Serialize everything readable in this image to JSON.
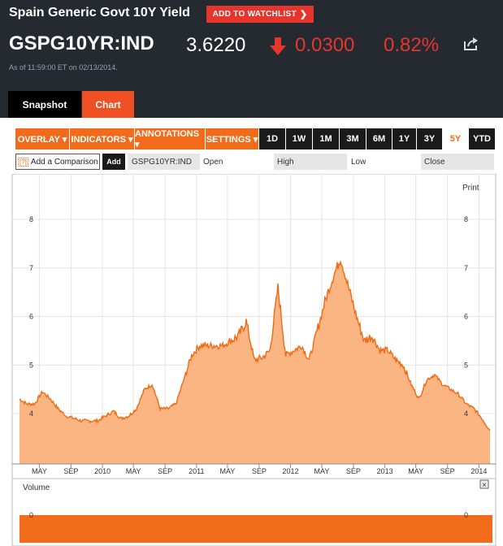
{
  "header": {
    "title": "Spain Generic Govt 10Y Yield",
    "watchlist_label": "ADD TO WATCHLIST",
    "ticker": "GSPG10YR:IND",
    "price": "3.6220",
    "change": "0.0300",
    "change_pct": "0.82%",
    "as_of": "As of 11:59:00 ET on 02/13/2014.",
    "tabs": [
      "Snapshot",
      "Chart"
    ]
  },
  "colors": {
    "accent": "#f26b1a",
    "header_bg": "#252a31",
    "down": "#e5352c",
    "area_fill": "#fbb582"
  },
  "toolbar": {
    "menus": [
      "OVERLAY ▾",
      "INDICATORS ▾",
      "ANNOTATIONS ▾",
      "SETTINGS ▾"
    ],
    "ranges": [
      "1D",
      "1W",
      "1M",
      "3M",
      "6M",
      "1Y",
      "3Y",
      "5Y",
      "YTD"
    ],
    "active_range": "5Y"
  },
  "comparison": {
    "placeholder": "Add a Comparison",
    "help_icon": "[?]",
    "add_label": "Add",
    "symbol": "GSPG10YR:IND",
    "fields": [
      "Open",
      "High",
      "Low",
      "Close"
    ]
  },
  "chart": {
    "print_label": "Print",
    "volume_label": "Volume",
    "volume_close_icon": "×"
  },
  "chart_data": {
    "type": "area",
    "yticks": [
      "4",
      "5",
      "6",
      "7",
      "8"
    ],
    "ylim": [
      3.3,
      8.4
    ],
    "xticks": [
      "MAY",
      "SEP",
      "2010",
      "MAY",
      "SEP",
      "2011",
      "MAY",
      "SEP",
      "2012",
      "MAY",
      "SEP",
      "2013",
      "MAY",
      "SEP",
      "2014"
    ],
    "x": [
      "2009-02",
      "2009-03",
      "2009-04",
      "2009-05",
      "2009-06",
      "2009-07",
      "2009-08",
      "2009-09",
      "2009-10",
      "2009-11",
      "2009-12",
      "2010-01",
      "2010-02",
      "2010-03",
      "2010-04",
      "2010-05",
      "2010-06",
      "2010-07",
      "2010-08",
      "2010-09",
      "2010-10",
      "2010-11",
      "2010-12",
      "2011-01",
      "2011-02",
      "2011-03",
      "2011-04",
      "2011-05",
      "2011-06",
      "2011-07",
      "2011-08",
      "2011-09",
      "2011-10",
      "2011-11",
      "2011-12",
      "2012-01",
      "2012-02",
      "2012-03",
      "2012-04",
      "2012-05",
      "2012-06",
      "2012-07",
      "2012-08",
      "2012-09",
      "2012-10",
      "2012-11",
      "2012-12",
      "2013-01",
      "2013-02",
      "2013-03",
      "2013-04",
      "2013-05",
      "2013-06",
      "2013-07",
      "2013-08",
      "2013-09",
      "2013-10",
      "2013-11",
      "2013-12",
      "2014-01",
      "2014-02"
    ],
    "values": [
      4.3,
      4.2,
      4.2,
      4.45,
      4.3,
      4.1,
      3.95,
      3.9,
      3.85,
      3.85,
      3.85,
      3.95,
      4.05,
      3.9,
      3.95,
      4.1,
      4.5,
      4.6,
      4.1,
      4.1,
      4.2,
      4.7,
      5.2,
      5.4,
      5.4,
      5.4,
      5.4,
      5.5,
      5.6,
      5.9,
      5.1,
      5.15,
      5.3,
      6.6,
      5.2,
      5.3,
      5.4,
      5.1,
      5.7,
      6.3,
      6.8,
      7.2,
      6.6,
      6.0,
      5.5,
      5.6,
      5.3,
      5.3,
      5.1,
      5.0,
      4.6,
      4.3,
      4.7,
      4.8,
      4.6,
      4.5,
      4.4,
      4.2,
      4.1,
      3.9,
      3.65
    ],
    "series": [
      {
        "name": "GSPG10YR:IND"
      }
    ]
  }
}
